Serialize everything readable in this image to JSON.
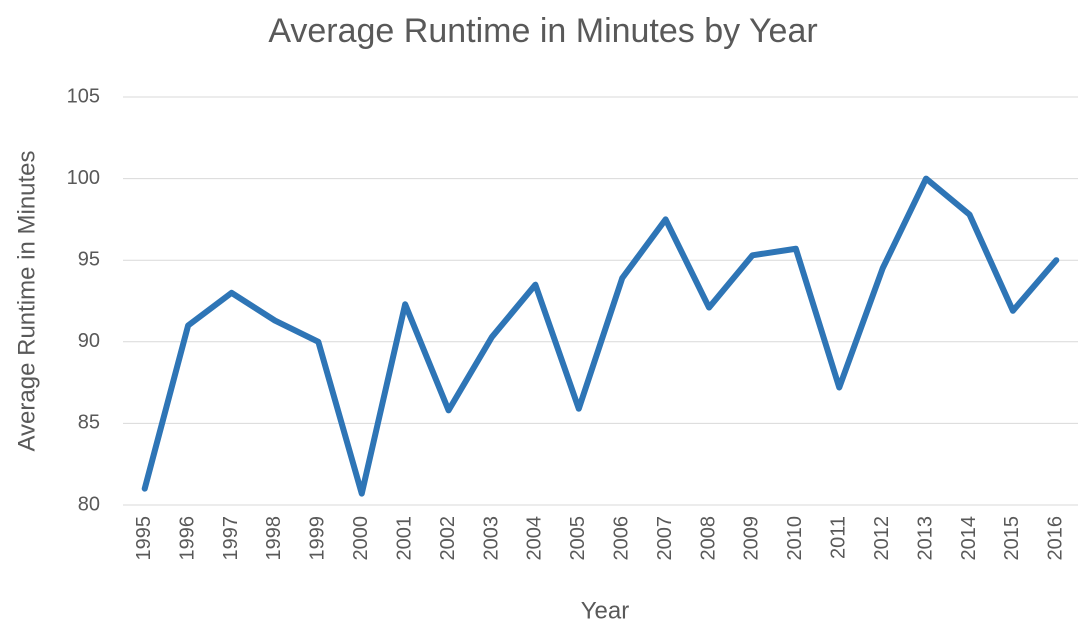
{
  "chart_data": {
    "type": "line",
    "title": "Average Runtime in Minutes by Year",
    "x_label": "Year",
    "y_label": "Average Runtime in Minutes",
    "categories": [
      "1995",
      "1996",
      "1997",
      "1998",
      "1999",
      "2000",
      "2001",
      "2002",
      "2003",
      "2004",
      "2005",
      "2006",
      "2007",
      "2008",
      "2009",
      "2010",
      "2011",
      "2012",
      "2013",
      "2014",
      "2015",
      "2016"
    ],
    "series": [
      {
        "name": "Average Runtime",
        "color": "#2e75b6",
        "values": [
          81,
          91,
          93,
          91.3,
          90,
          80.7,
          92.3,
          85.8,
          90.3,
          93.5,
          85.9,
          93.9,
          97.5,
          92.1,
          95.3,
          95.7,
          87.2,
          94.5,
          100,
          97.8,
          91.9,
          95
        ]
      }
    ],
    "ylim": [
      80,
      105
    ],
    "yticks": [
      80,
      85,
      90,
      95,
      100,
      105
    ],
    "grid": true
  }
}
